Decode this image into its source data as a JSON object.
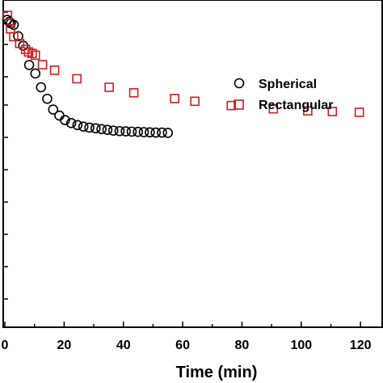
{
  "chart_data": {
    "type": "scatter",
    "title": "",
    "xlabel": "Time (min)",
    "ylabel": "",
    "xlim": [
      0,
      126
    ],
    "xticks": [
      0,
      20,
      40,
      60,
      80,
      100,
      120
    ],
    "ylim": [
      0,
      1
    ],
    "y_tick_labels_visible": false,
    "grid": false,
    "legend_position": "top-right",
    "series": [
      {
        "name": "Spherical",
        "marker": "circle",
        "color": "#000000",
        "x": [
          0.8,
          1.5,
          2.0,
          3.0,
          4.5,
          6.2,
          8.2,
          10.3,
          12.2,
          14.3,
          16.3,
          18.4,
          20.3,
          22.4,
          24.5,
          26.5,
          28.5,
          30.6,
          32.6,
          34.6,
          36.6,
          38.7,
          40.8,
          42.8,
          44.9,
          46.9,
          48.9,
          50.9,
          53.0,
          55.0
        ],
        "y": [
          0.969,
          0.961,
          0.955,
          0.949,
          0.904,
          0.866,
          0.789,
          0.755,
          0.7,
          0.654,
          0.611,
          0.587,
          0.569,
          0.557,
          0.549,
          0.543,
          0.539,
          0.536,
          0.533,
          0.53,
          0.527,
          0.525,
          0.524,
          0.523,
          0.522,
          0.521,
          0.52,
          0.519,
          0.519,
          0.518
        ]
      },
      {
        "name": "Rectangular",
        "marker": "square",
        "color": "#cc2020",
        "x": [
          0.9,
          1.9,
          3.0,
          5.0,
          7.0,
          8.0,
          9.2,
          10.3,
          12.7,
          16.8,
          24.3,
          35.2,
          43.5,
          57.3,
          64.1,
          76.4,
          90.6,
          102.2,
          110.5,
          119.6
        ],
        "y": [
          0.987,
          0.933,
          0.902,
          0.875,
          0.851,
          0.841,
          0.835,
          0.828,
          0.79,
          0.768,
          0.734,
          0.7,
          0.678,
          0.655,
          0.644,
          0.627,
          0.614,
          0.606,
          0.603,
          0.6
        ]
      }
    ]
  }
}
